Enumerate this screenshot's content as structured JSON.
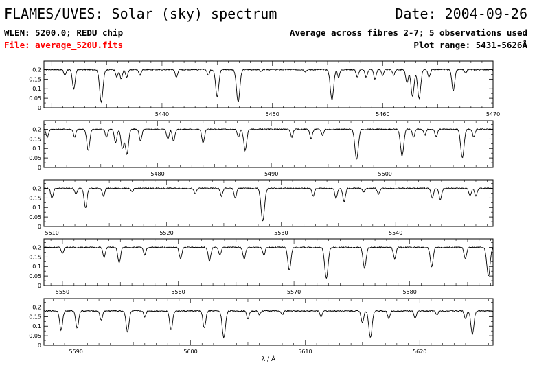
{
  "header": {
    "title": "FLAMES/UVES: Solar (sky) spectrum",
    "date": "Date: 2004-09-26",
    "wlen": "WLEN: 5200.0; REDU chip",
    "average": "Average across fibres 2-7; 5 observations used",
    "file": "File: average_520U.fits",
    "plot_range": "Plot range: 5431-5626Å",
    "file_color": "#ff0000"
  },
  "chart_data": [
    {
      "type": "line",
      "xlim": [
        5429.3,
        5470
      ],
      "ylim": [
        0,
        0.25
      ],
      "yticks": [
        0,
        0.05,
        0.1,
        0.15,
        0.2
      ],
      "xticks": [
        5440,
        5450,
        5460,
        5470
      ],
      "xlabel": "",
      "continuum": 0.2,
      "lines": [
        [
          5431.2,
          0.17
        ],
        [
          5432.0,
          0.1
        ],
        [
          5434.5,
          0.03
        ],
        [
          5435.9,
          0.16
        ],
        [
          5436.3,
          0.15
        ],
        [
          5436.8,
          0.16
        ],
        [
          5438.0,
          0.17
        ],
        [
          5441.3,
          0.16
        ],
        [
          5444.2,
          0.17
        ],
        [
          5445.0,
          0.06
        ],
        [
          5446.9,
          0.03
        ],
        [
          5449.0,
          0.19
        ],
        [
          5453.0,
          0.19
        ],
        [
          5455.4,
          0.04
        ],
        [
          5456.0,
          0.16
        ],
        [
          5457.7,
          0.16
        ],
        [
          5458.5,
          0.16
        ],
        [
          5459.3,
          0.15
        ],
        [
          5460.0,
          0.17
        ],
        [
          5461.0,
          0.17
        ],
        [
          5462.2,
          0.13
        ],
        [
          5462.7,
          0.06
        ],
        [
          5463.3,
          0.05
        ],
        [
          5464.2,
          0.16
        ],
        [
          5466.4,
          0.09
        ],
        [
          5467.5,
          0.18
        ]
      ]
    },
    {
      "type": "line",
      "xlim": [
        5470,
        5509.5
      ],
      "ylim": [
        0,
        0.25
      ],
      "yticks": [
        0,
        0.05,
        0.1,
        0.15,
        0.2
      ],
      "xticks": [
        5480,
        5490,
        5500
      ],
      "xlabel": "",
      "continuum": 0.2,
      "lines": [
        [
          5470.3,
          0.16
        ],
        [
          5472.7,
          0.16
        ],
        [
          5473.9,
          0.09
        ],
        [
          5475.5,
          0.16
        ],
        [
          5476.3,
          0.13
        ],
        [
          5476.9,
          0.1
        ],
        [
          5477.3,
          0.07
        ],
        [
          5478.5,
          0.14
        ],
        [
          5480.9,
          0.15
        ],
        [
          5481.4,
          0.14
        ],
        [
          5484.0,
          0.13
        ],
        [
          5487.1,
          0.16
        ],
        [
          5487.7,
          0.09
        ],
        [
          5491.8,
          0.16
        ],
        [
          5493.5,
          0.15
        ],
        [
          5494.5,
          0.17
        ],
        [
          5497.5,
          0.04
        ],
        [
          5501.5,
          0.06
        ],
        [
          5502.5,
          0.16
        ],
        [
          5503.5,
          0.17
        ],
        [
          5504.5,
          0.16
        ],
        [
          5506.8,
          0.05
        ],
        [
          5507.8,
          0.16
        ]
      ]
    },
    {
      "type": "line",
      "xlim": [
        5509.3,
        5548.5
      ],
      "ylim": [
        0,
        0.25
      ],
      "yticks": [
        0,
        0.05,
        0.1,
        0.15,
        0.2
      ],
      "xticks": [
        5510,
        5520,
        5530,
        5540
      ],
      "xlabel": "",
      "continuum": 0.2,
      "lines": [
        [
          5510.0,
          0.15
        ],
        [
          5512.1,
          0.17
        ],
        [
          5512.9,
          0.13
        ],
        [
          5513.0,
          0.16
        ],
        [
          5514.5,
          0.16
        ],
        [
          5517.0,
          0.18
        ],
        [
          5522.5,
          0.17
        ],
        [
          5524.8,
          0.16
        ],
        [
          5526.0,
          0.15
        ],
        [
          5528.4,
          0.03
        ],
        [
          5532.8,
          0.16
        ],
        [
          5534.8,
          0.15
        ],
        [
          5535.5,
          0.13
        ],
        [
          5537.2,
          0.18
        ],
        [
          5538.5,
          0.17
        ],
        [
          5543.2,
          0.15
        ],
        [
          5543.9,
          0.14
        ],
        [
          5546.5,
          0.16
        ],
        [
          5547.0,
          0.16
        ]
      ]
    },
    {
      "type": "line",
      "xlim": [
        5548.4,
        5587.2
      ],
      "ylim": [
        0,
        0.25
      ],
      "yticks": [
        0,
        0.05,
        0.1,
        0.15,
        0.2
      ],
      "xticks": [
        5550,
        5560,
        5570,
        5580
      ],
      "xlabel": "",
      "continuum": 0.2,
      "lines": [
        [
          5550.0,
          0.17
        ],
        [
          5553.6,
          0.15
        ],
        [
          5554.9,
          0.12
        ],
        [
          5557.1,
          0.16
        ],
        [
          5560.2,
          0.14
        ],
        [
          5562.7,
          0.13
        ],
        [
          5563.6,
          0.16
        ],
        [
          5565.7,
          0.14
        ],
        [
          5567.4,
          0.16
        ],
        [
          5569.6,
          0.08
        ],
        [
          5572.8,
          0.04
        ],
        [
          5576.1,
          0.09
        ],
        [
          5578.7,
          0.14
        ],
        [
          5581.9,
          0.1
        ],
        [
          5584.8,
          0.14
        ],
        [
          5586.8,
          0.05
        ]
      ]
    },
    {
      "type": "line",
      "xlim": [
        5587.2,
        5626.4
      ],
      "ylim": [
        0,
        0.25
      ],
      "yticks": [
        0,
        0.05,
        0.1,
        0.15,
        0.2
      ],
      "xticks": [
        5590,
        5600,
        5610,
        5620
      ],
      "xlabel": "λ / Å",
      "continuum": 0.18,
      "lines": [
        [
          5588.7,
          0.08
        ],
        [
          5590.1,
          0.09
        ],
        [
          5592.2,
          0.13
        ],
        [
          5594.5,
          0.07
        ],
        [
          5596.0,
          0.15
        ],
        [
          5598.3,
          0.08
        ],
        [
          5601.2,
          0.09
        ],
        [
          5602.9,
          0.04
        ],
        [
          5605.0,
          0.14
        ],
        [
          5606.0,
          0.16
        ],
        [
          5608.0,
          0.16
        ],
        [
          5611.4,
          0.15
        ],
        [
          5615.0,
          0.12
        ],
        [
          5615.7,
          0.04
        ],
        [
          5617.3,
          0.14
        ],
        [
          5619.6,
          0.14
        ],
        [
          5621.5,
          0.16
        ],
        [
          5624.0,
          0.14
        ],
        [
          5624.6,
          0.06
        ]
      ]
    }
  ]
}
